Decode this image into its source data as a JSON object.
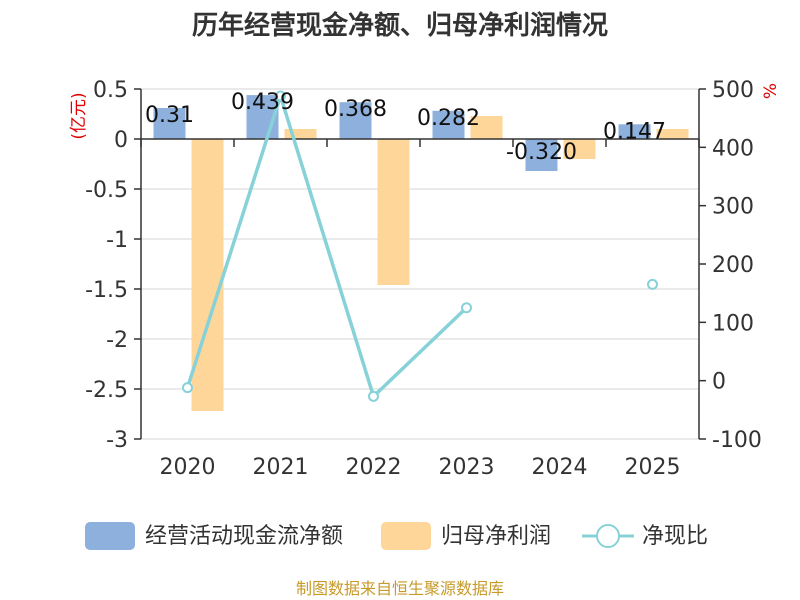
{
  "chart_data": {
    "type": "bar",
    "title": "历年经营现金净额、归母净利润情况",
    "categories": [
      "2020",
      "2021",
      "2022",
      "2023",
      "2024",
      "2025"
    ],
    "left_axis": {
      "unit": "(亿元)",
      "min": -3,
      "max": 0.5,
      "ticks": [
        0.5,
        0,
        -0.5,
        -1,
        -1.5,
        -2,
        -2.5,
        -3
      ],
      "tick_labels": [
        "0.5",
        "0",
        "-0.5",
        "-1",
        "-1.5",
        "-2",
        "-2.5",
        "-3"
      ]
    },
    "right_axis": {
      "unit": "%",
      "min": -100,
      "max": 500,
      "ticks": [
        500,
        400,
        300,
        200,
        100,
        0,
        -100
      ],
      "tick_labels": [
        "500",
        "400",
        "300",
        "200",
        "100",
        "0",
        "-100"
      ]
    },
    "series": [
      {
        "name": "经营活动现金流净额",
        "type": "bar",
        "axis": "left",
        "color": "#8eb0dc",
        "values": [
          0.31,
          0.439,
          0.368,
          0.282,
          -0.32,
          0.147
        ],
        "labels": [
          "0.31",
          "0.439",
          "0.368",
          "0.282",
          "-0.320",
          "0.147"
        ]
      },
      {
        "name": "归母净利润",
        "type": "bar",
        "axis": "left",
        "color": "#ffd699",
        "values": [
          -2.72,
          0.1,
          -1.46,
          0.23,
          -0.2,
          0.1
        ]
      },
      {
        "name": "净现比",
        "type": "line",
        "axis": "right",
        "color": "#86d2d8",
        "values": [
          -12,
          488,
          -27,
          125,
          null,
          165
        ]
      }
    ],
    "legend_position": "bottom",
    "grid": true,
    "source": "制图数据来自恒生聚源数据库"
  }
}
